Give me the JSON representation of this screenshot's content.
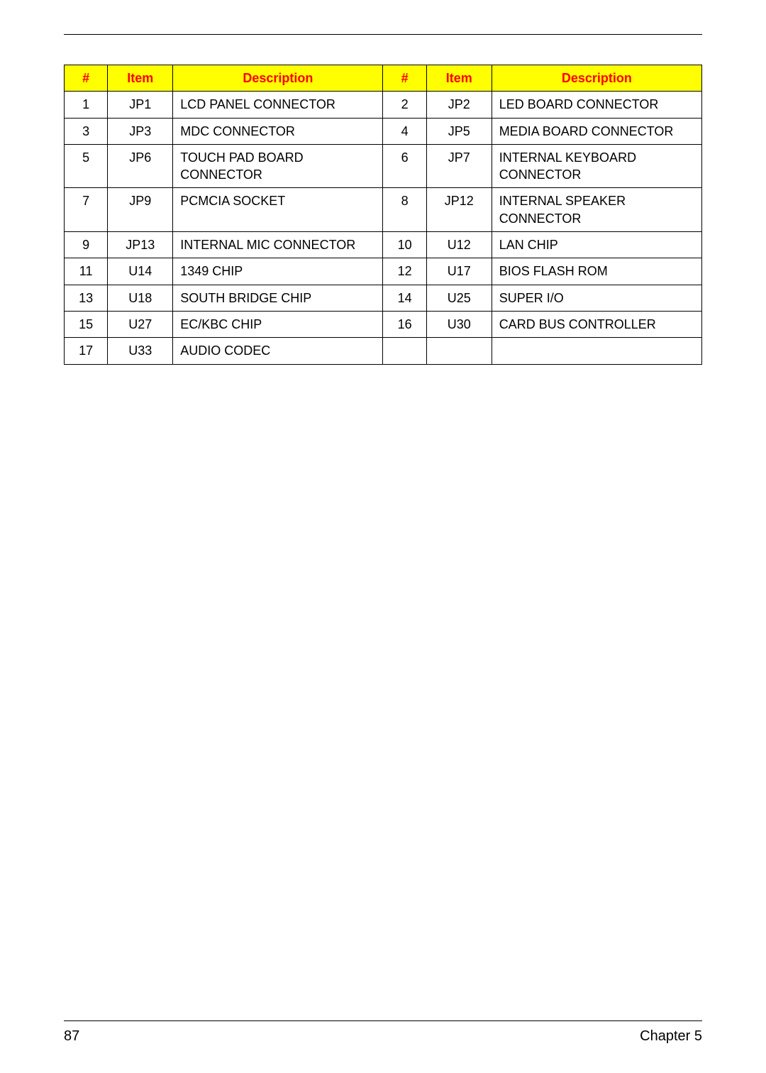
{
  "table": {
    "header_bg": "#ffff00",
    "header_text_color": "#ff0000",
    "border_color": "#000000",
    "columns": [
      "#",
      "Item",
      "Description",
      "#",
      "Item",
      "Description"
    ],
    "rows": [
      [
        "1",
        "JP1",
        "LCD PANEL CONNECTOR",
        "2",
        "JP2",
        "LED BOARD CONNECTOR"
      ],
      [
        "3",
        "JP3",
        "MDC CONNECTOR",
        "4",
        "JP5",
        "MEDIA BOARD CONNECTOR"
      ],
      [
        "5",
        "JP6",
        "TOUCH PAD BOARD CONNECTOR",
        "6",
        "JP7",
        "INTERNAL KEYBOARD CONNECTOR"
      ],
      [
        "7",
        "JP9",
        "PCMCIA SOCKET",
        "8",
        "JP12",
        "INTERNAL SPEAKER CONNECTOR"
      ],
      [
        "9",
        "JP13",
        "INTERNAL MIC CONNECTOR",
        "10",
        "U12",
        "LAN CHIP"
      ],
      [
        "11",
        "U14",
        "1349 CHIP",
        "12",
        "U17",
        "BIOS FLASH ROM"
      ],
      [
        "13",
        "U18",
        "SOUTH BRIDGE CHIP",
        "14",
        "U25",
        "SUPER I/O"
      ],
      [
        "15",
        "U27",
        "EC/KBC CHIP",
        "16",
        "U30",
        "CARD BUS CONTROLLER"
      ],
      [
        "17",
        "U33",
        "AUDIO CODEC",
        "",
        "",
        ""
      ]
    ]
  },
  "footer": {
    "page_number": "87",
    "chapter": "Chapter 5"
  }
}
